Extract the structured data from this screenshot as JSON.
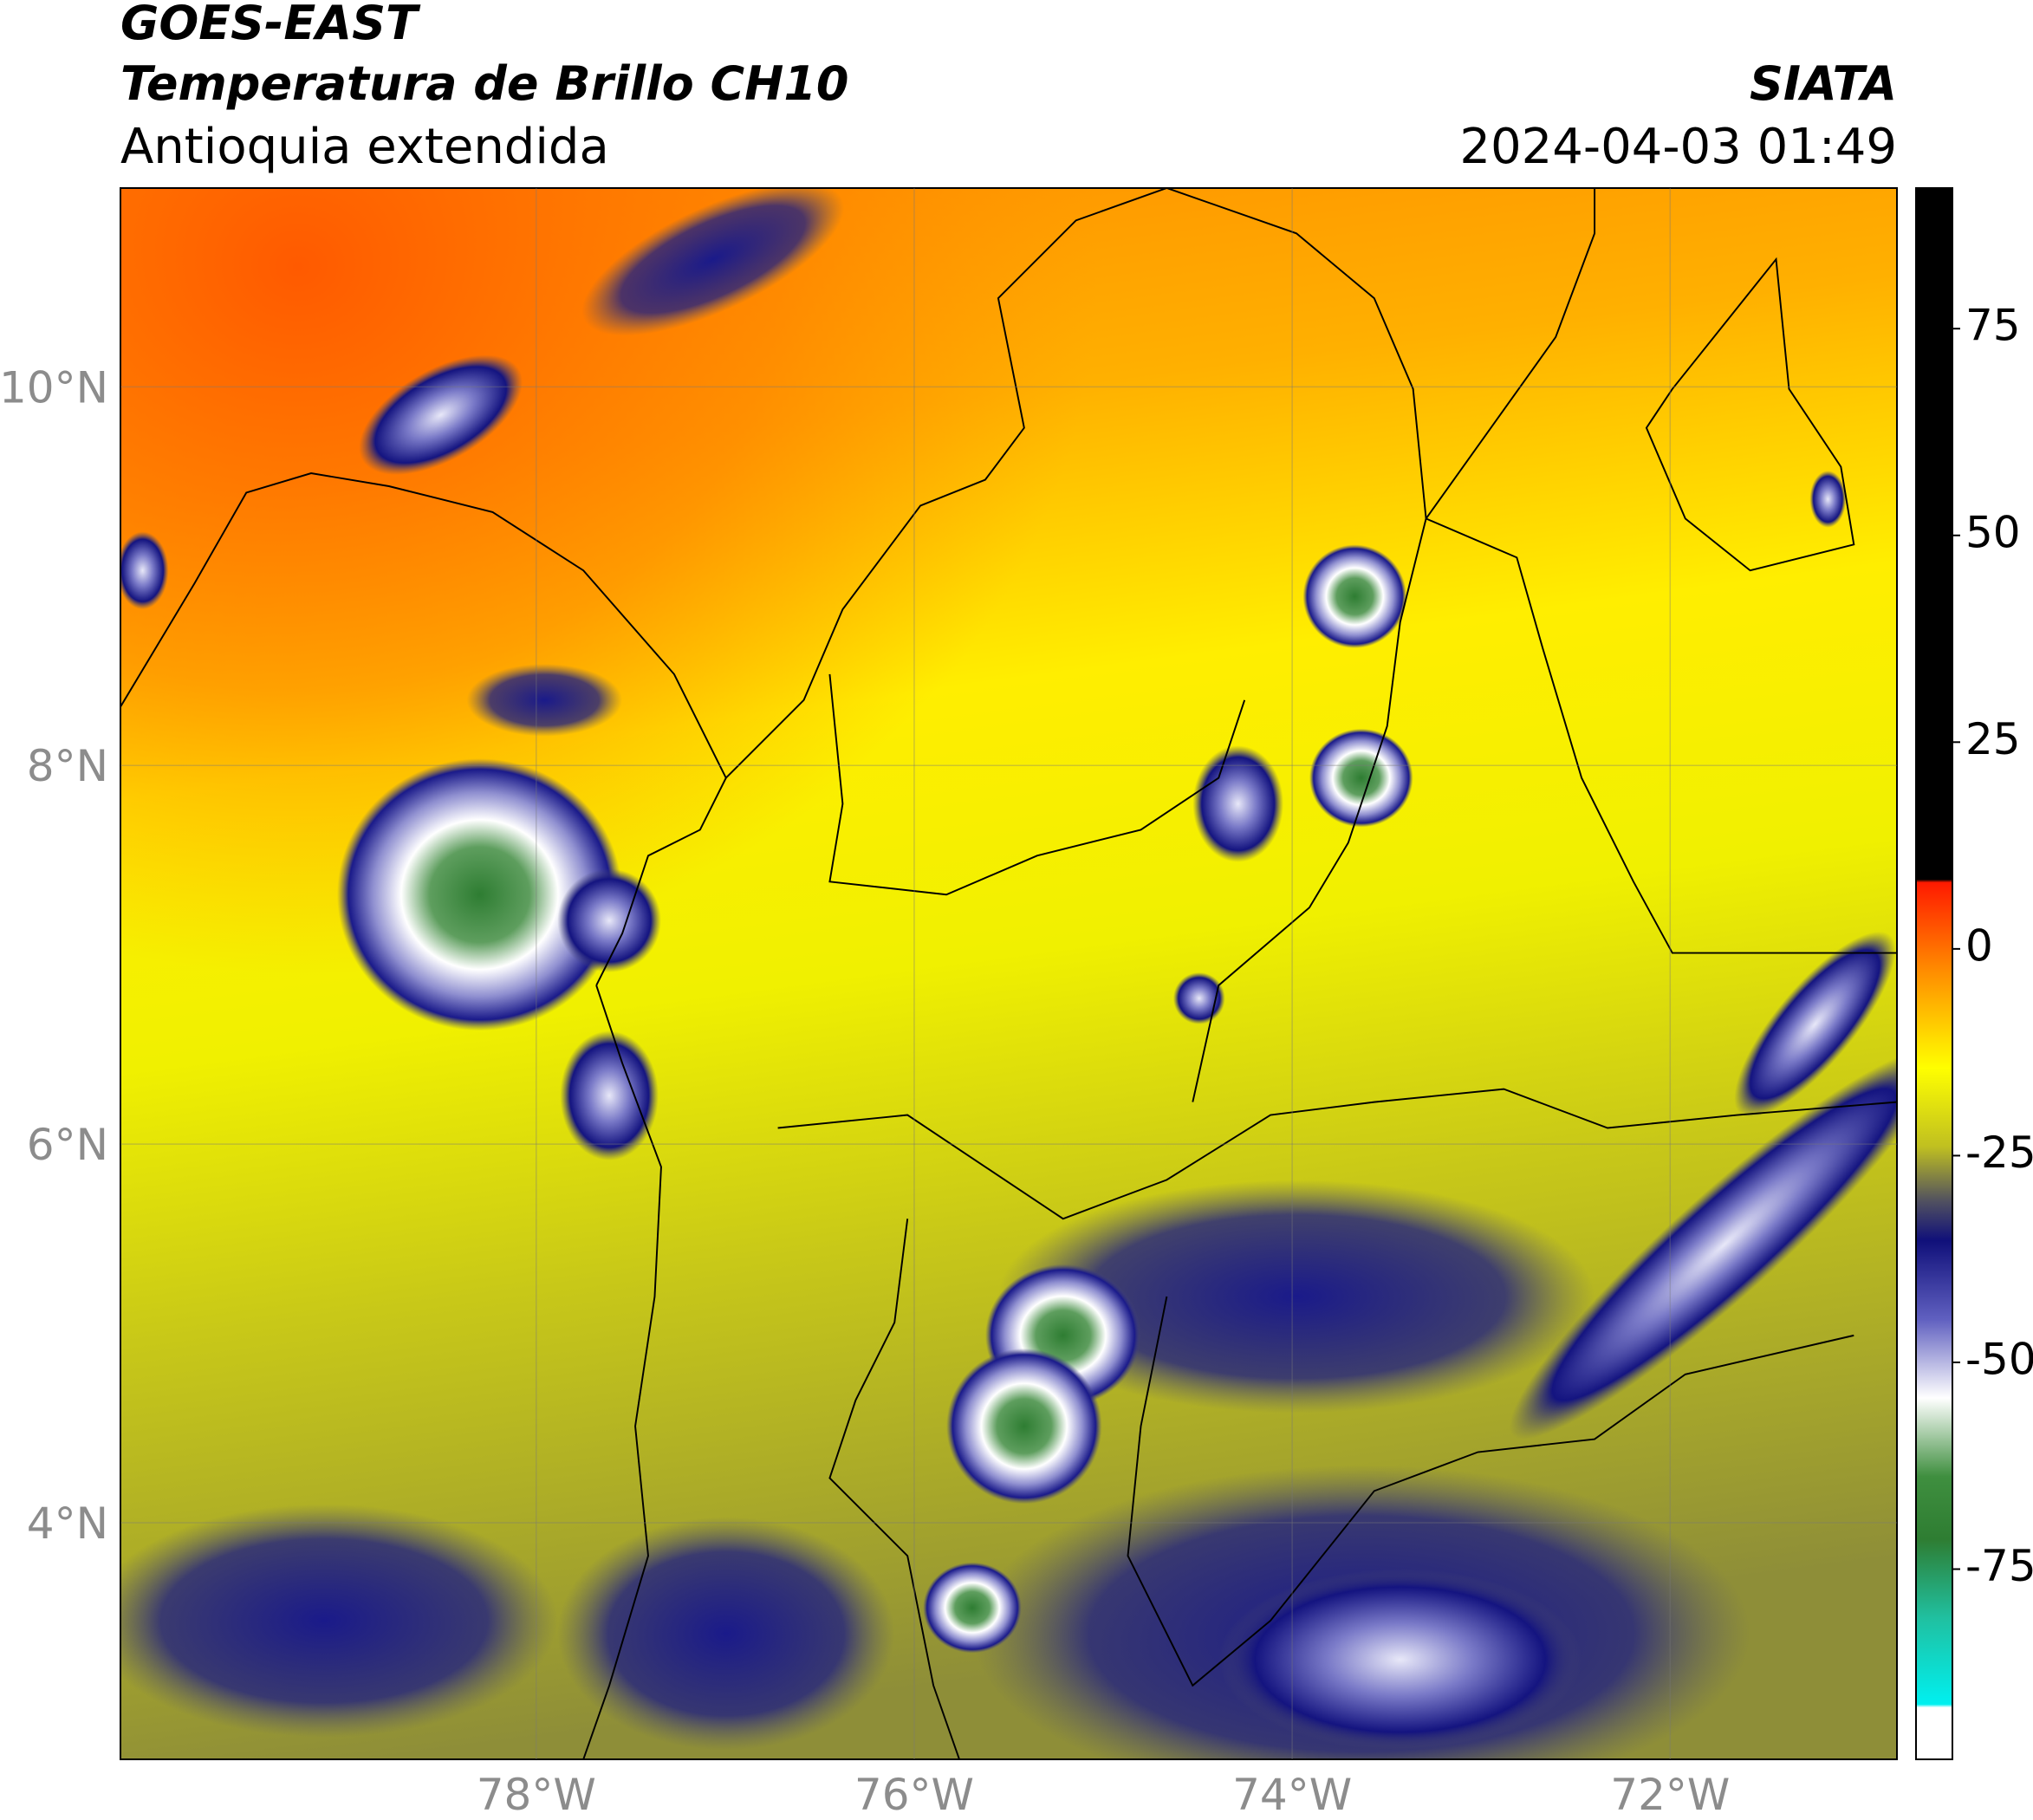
{
  "header": {
    "title": "GOES-EAST",
    "subtitle": "Temperatura de Brillo CH10",
    "region": "Antioquia extendida",
    "source": "SIATA",
    "datetime": "2024-04-03 01:49"
  },
  "map": {
    "lat_range": [
      2.75,
      11.05
    ],
    "lon_range": [
      -80.2,
      -70.8
    ],
    "lat_ticks": [
      {
        "value": 10,
        "label": "10°N"
      },
      {
        "value": 8,
        "label": "8°N"
      },
      {
        "value": 6,
        "label": "6°N"
      },
      {
        "value": 4,
        "label": "4°N"
      }
    ],
    "lon_ticks": [
      {
        "value": -78,
        "label": "78°W"
      },
      {
        "value": -76,
        "label": "76°W"
      },
      {
        "value": -74,
        "label": "74°W"
      },
      {
        "value": -72,
        "label": "72°W"
      }
    ]
  },
  "colorbar": {
    "range": [
      -98,
      92
    ],
    "ticks": [
      75,
      50,
      25,
      0,
      -25,
      -50,
      -75
    ]
  }
}
